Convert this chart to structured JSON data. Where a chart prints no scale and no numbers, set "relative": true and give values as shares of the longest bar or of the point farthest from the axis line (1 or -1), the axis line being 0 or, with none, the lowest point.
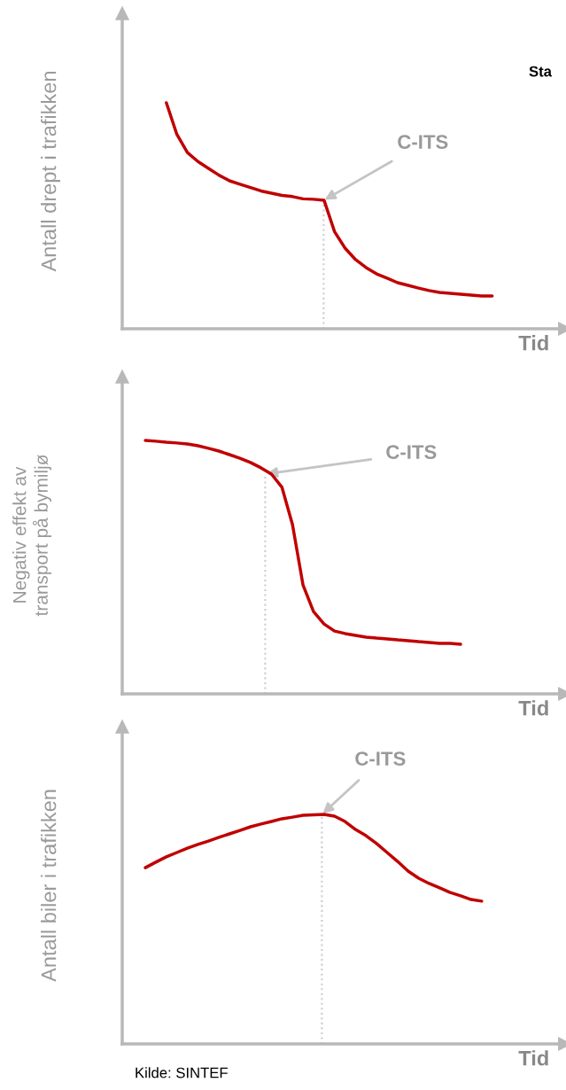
{
  "chart_data": [
    {
      "type": "line",
      "relative": true,
      "marker": "none",
      "line_style": "solid",
      "ylabel": "Antall drept i trafikken",
      "xlabel": "Tid",
      "categories": [
        null,
        null,
        null,
        null,
        null,
        null,
        null,
        null,
        null,
        null,
        null,
        null,
        null,
        null,
        null,
        null,
        null,
        null,
        null,
        null,
        null,
        null,
        null,
        null,
        null,
        null,
        null,
        null,
        null,
        null,
        null,
        null,
        null,
        null,
        null,
        null,
        null,
        null,
        null,
        null,
        null,
        null
      ],
      "series": [
        {
          "color": "#c00000",
          "values": [
            null,
            null,
            null,
            null,
            1.0,
            0.86,
            0.78,
            0.74,
            0.71,
            0.68,
            0.655,
            0.64,
            0.625,
            0.61,
            0.6,
            0.59,
            0.585,
            0.575,
            0.573,
            0.569,
            0.43,
            0.357,
            0.306,
            0.271,
            0.243,
            0.224,
            0.204,
            0.192,
            0.18,
            0.169,
            0.161,
            0.157,
            0.153,
            0.149,
            0.145,
            0.145,
            null,
            null,
            null,
            null,
            null,
            null
          ]
        }
      ],
      "annotations": [
        "C-ITS",
        "Sta"
      ]
    },
    {
      "type": "line",
      "relative": true,
      "marker": "none",
      "line_style": "solid",
      "ylabel": "Negativ effekt av\ntransport på bymiljø",
      "xlabel": "Tid",
      "categories": [
        null,
        null,
        null,
        null,
        null,
        null,
        null,
        null,
        null,
        null,
        null,
        null,
        null,
        null,
        null,
        null,
        null,
        null,
        null,
        null,
        null,
        null,
        null,
        null,
        null,
        null,
        null,
        null,
        null,
        null,
        null,
        null,
        null,
        null,
        null,
        null,
        null,
        null,
        null,
        null,
        null,
        null
      ],
      "series": [
        {
          "color": "#c00000",
          "values": [
            null,
            null,
            1.0,
            0.997,
            0.993,
            0.99,
            0.986,
            0.979,
            0.969,
            0.958,
            0.944,
            0.93,
            0.913,
            0.892,
            0.867,
            0.815,
            0.668,
            0.43,
            0.325,
            0.276,
            0.248,
            0.238,
            0.231,
            0.224,
            0.22,
            0.217,
            0.213,
            0.21,
            0.206,
            0.203,
            0.199,
            0.199,
            0.196,
            null,
            null,
            null,
            null,
            null,
            null,
            null,
            null,
            null
          ]
        }
      ],
      "annotations": [
        "C-ITS"
      ]
    },
    {
      "type": "line",
      "relative": true,
      "marker": "none",
      "line_style": "solid",
      "ylabel": "Antall biler i trafikken",
      "xlabel": "Tid",
      "categories": [
        null,
        null,
        null,
        null,
        null,
        null,
        null,
        null,
        null,
        null,
        null,
        null,
        null,
        null,
        null,
        null,
        null,
        null,
        null,
        null,
        null,
        null,
        null,
        null,
        null,
        null,
        null,
        null,
        null,
        null,
        null,
        null,
        null,
        null,
        null,
        null,
        null,
        null,
        null,
        null,
        null,
        null
      ],
      "series": [
        {
          "color": "#c00000",
          "values": [
            null,
            null,
            0.768,
            0.792,
            0.815,
            0.834,
            0.853,
            0.869,
            0.884,
            0.9,
            0.915,
            0.93,
            0.946,
            0.958,
            0.969,
            0.981,
            0.988,
            0.996,
            0.998,
            1.0,
            0.992,
            0.969,
            0.934,
            0.907,
            0.873,
            0.834,
            0.795,
            0.753,
            0.722,
            0.699,
            0.68,
            0.66,
            0.645,
            0.629,
            0.622,
            null,
            null,
            null,
            null,
            null,
            null,
            null
          ]
        }
      ],
      "annotations": [
        "C-ITS",
        "Kilde: SINTEF"
      ]
    }
  ]
}
